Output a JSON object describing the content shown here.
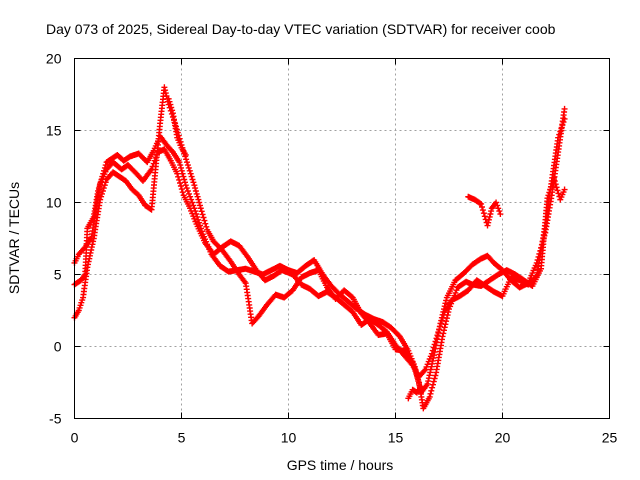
{
  "chart_data": {
    "type": "scatter",
    "title": "Day 073 of 2025, Sidereal Day-to-day VTEC variation (SDTVAR) for receiver coob",
    "xlabel": "GPS time / hours",
    "ylabel": "SDTVAR / TECUs",
    "xlim": [
      0,
      25
    ],
    "ylim": [
      -5,
      20
    ],
    "xticks": [
      0,
      5,
      10,
      15,
      20,
      25
    ],
    "yticks": [
      -5,
      0,
      5,
      10,
      15,
      20
    ],
    "grid": true,
    "legend": "none",
    "marker": "+",
    "series": [
      {
        "name": "track-a",
        "color": "#ff0000",
        "points": [
          [
            0.0,
            4.3
          ],
          [
            0.3,
            4.6
          ],
          [
            0.5,
            5.0
          ],
          [
            0.6,
            8.2
          ],
          [
            0.9,
            9.0
          ],
          [
            1.1,
            10.8
          ],
          [
            1.5,
            12.8
          ],
          [
            2.0,
            13.3
          ],
          [
            2.3,
            12.9
          ],
          [
            2.6,
            13.2
          ],
          [
            3.0,
            13.4
          ],
          [
            3.4,
            12.8
          ],
          [
            3.7,
            13.6
          ],
          [
            4.0,
            14.6
          ],
          [
            4.3,
            14.0
          ],
          [
            4.6,
            13.5
          ],
          [
            4.9,
            12.8
          ],
          [
            5.2,
            11.2
          ],
          [
            5.6,
            9.6
          ],
          [
            6.0,
            7.8
          ],
          [
            6.4,
            6.4
          ],
          [
            6.8,
            5.6
          ],
          [
            7.2,
            5.2
          ],
          [
            7.6,
            5.3
          ],
          [
            8.0,
            5.4
          ],
          [
            8.4,
            5.2
          ],
          [
            8.8,
            5.0
          ],
          [
            9.2,
            5.3
          ],
          [
            9.6,
            5.6
          ],
          [
            10.0,
            5.3
          ],
          [
            10.4,
            5.1
          ],
          [
            10.8,
            5.6
          ],
          [
            11.2,
            6.0
          ],
          [
            11.6,
            5.0
          ],
          [
            12.0,
            4.2
          ],
          [
            12.4,
            3.6
          ],
          [
            12.8,
            3.1
          ],
          [
            13.2,
            2.6
          ],
          [
            13.6,
            2.2
          ],
          [
            14.0,
            1.9
          ],
          [
            14.4,
            1.7
          ],
          [
            14.8,
            1.3
          ],
          [
            15.2,
            0.7
          ],
          [
            15.6,
            -0.3
          ],
          [
            15.9,
            -1.4
          ],
          [
            16.2,
            -3.2
          ],
          [
            16.5,
            -2.6
          ],
          [
            16.8,
            -0.6
          ],
          [
            17.1,
            1.6
          ],
          [
            17.4,
            3.4
          ],
          [
            17.8,
            4.6
          ],
          [
            18.2,
            5.1
          ],
          [
            18.6,
            5.7
          ],
          [
            19.0,
            6.1
          ],
          [
            19.3,
            6.3
          ],
          [
            19.6,
            5.8
          ],
          [
            20.0,
            5.3
          ],
          [
            20.4,
            4.6
          ],
          [
            20.8,
            4.1
          ],
          [
            21.2,
            4.4
          ],
          [
            21.6,
            5.8
          ],
          [
            22.0,
            7.9
          ],
          [
            22.3,
            10.5
          ],
          [
            22.6,
            13.5
          ],
          [
            22.9,
            16.5
          ]
        ]
      },
      {
        "name": "track-b",
        "color": "#ff0000",
        "points": [
          [
            0.0,
            5.8
          ],
          [
            0.2,
            6.4
          ],
          [
            0.5,
            6.9
          ],
          [
            0.8,
            7.6
          ],
          [
            1.0,
            9.5
          ],
          [
            1.2,
            11.3
          ],
          [
            1.5,
            12.3
          ],
          [
            1.8,
            12.8
          ],
          [
            2.2,
            12.3
          ],
          [
            2.5,
            12.6
          ],
          [
            2.9,
            12.0
          ],
          [
            3.2,
            11.5
          ],
          [
            3.6,
            12.3
          ],
          [
            3.9,
            13.5
          ],
          [
            4.2,
            13.7
          ],
          [
            4.5,
            12.9
          ],
          [
            4.8,
            12.0
          ],
          [
            5.1,
            10.5
          ],
          [
            5.4,
            9.6
          ],
          [
            5.7,
            8.5
          ],
          [
            6.1,
            7.2
          ],
          [
            6.5,
            6.4
          ],
          [
            6.9,
            6.9
          ],
          [
            7.3,
            7.3
          ],
          [
            7.7,
            7.0
          ],
          [
            8.1,
            6.2
          ],
          [
            8.5,
            5.3
          ],
          [
            8.9,
            4.6
          ],
          [
            9.3,
            4.9
          ],
          [
            9.7,
            5.3
          ],
          [
            10.2,
            5.0
          ],
          [
            10.6,
            4.3
          ],
          [
            11.0,
            4.0
          ],
          [
            11.4,
            3.5
          ],
          [
            11.8,
            3.8
          ],
          [
            12.2,
            3.4
          ],
          [
            12.6,
            2.9
          ],
          [
            13.0,
            2.4
          ],
          [
            13.4,
            1.5
          ],
          [
            13.8,
            1.9
          ],
          [
            14.2,
            1.5
          ],
          [
            14.6,
            1.0
          ],
          [
            15.0,
            0.1
          ],
          [
            15.4,
            -0.6
          ],
          [
            15.8,
            -1.3
          ],
          [
            16.1,
            -2.1
          ],
          [
            16.4,
            -1.6
          ],
          [
            16.7,
            -0.5
          ],
          [
            17.0,
            1.0
          ],
          [
            17.3,
            2.4
          ],
          [
            17.6,
            3.2
          ],
          [
            18.0,
            3.5
          ],
          [
            18.4,
            3.9
          ],
          [
            18.8,
            4.6
          ],
          [
            19.2,
            4.2
          ],
          [
            19.6,
            3.8
          ],
          [
            20.0,
            3.5
          ],
          [
            20.4,
            4.8
          ],
          [
            20.8,
            4.6
          ],
          [
            21.2,
            4.3
          ],
          [
            21.6,
            4.9
          ],
          [
            22.0,
            8.4
          ],
          [
            22.3,
            11.5
          ],
          [
            22.6,
            14.5
          ],
          [
            22.9,
            15.8
          ]
        ]
      },
      {
        "name": "track-c",
        "color": "#ff0000",
        "points": [
          [
            0.0,
            2.0
          ],
          [
            0.2,
            2.5
          ],
          [
            0.4,
            3.4
          ],
          [
            0.6,
            5.5
          ],
          [
            0.9,
            7.5
          ],
          [
            1.2,
            10.2
          ],
          [
            1.5,
            11.6
          ],
          [
            1.8,
            12.1
          ],
          [
            2.1,
            11.8
          ],
          [
            2.4,
            11.5
          ],
          [
            2.7,
            10.9
          ],
          [
            3.0,
            10.5
          ],
          [
            3.3,
            9.8
          ],
          [
            3.6,
            9.5
          ],
          [
            4.0,
            15.5
          ],
          [
            4.2,
            18.0
          ],
          [
            4.4,
            16.8
          ],
          [
            4.7,
            15.5
          ],
          [
            5.0,
            14.0
          ],
          [
            5.3,
            12.6
          ],
          [
            5.6,
            11.2
          ],
          [
            5.9,
            9.6
          ],
          [
            6.2,
            8.1
          ],
          [
            6.5,
            7.3
          ],
          [
            6.9,
            6.7
          ],
          [
            7.3,
            5.9
          ],
          [
            7.7,
            5.0
          ],
          [
            8.0,
            4.4
          ],
          [
            8.3,
            1.6
          ],
          [
            8.6,
            2.1
          ],
          [
            9.0,
            2.9
          ],
          [
            9.4,
            3.6
          ],
          [
            9.8,
            3.4
          ],
          [
            10.2,
            3.9
          ],
          [
            10.6,
            4.8
          ],
          [
            11.0,
            5.1
          ],
          [
            11.4,
            5.3
          ],
          [
            11.8,
            4.1
          ],
          [
            12.2,
            3.3
          ],
          [
            12.6,
            3.9
          ],
          [
            13.0,
            3.4
          ],
          [
            13.4,
            2.3
          ],
          [
            13.8,
            1.6
          ],
          [
            14.2,
            0.8
          ],
          [
            14.6,
            0.9
          ],
          [
            15.0,
            -0.2
          ],
          [
            15.4,
            -0.3
          ],
          [
            15.8,
            -1.1
          ],
          [
            16.1,
            -2.5
          ],
          [
            16.3,
            -4.3
          ],
          [
            16.6,
            -3.5
          ],
          [
            16.9,
            -1.8
          ],
          [
            17.2,
            0.7
          ],
          [
            17.5,
            2.6
          ],
          [
            17.9,
            4.1
          ],
          [
            18.3,
            4.5
          ],
          [
            18.6,
            4.3
          ],
          [
            19.0,
            4.2
          ],
          [
            19.4,
            4.6
          ],
          [
            19.8,
            5.0
          ],
          [
            20.2,
            5.3
          ],
          [
            20.6,
            5.0
          ],
          [
            21.0,
            4.6
          ],
          [
            21.4,
            4.2
          ],
          [
            21.8,
            5.4
          ],
          [
            22.1,
            10.3
          ],
          [
            22.4,
            11.7
          ],
          [
            22.7,
            10.2
          ],
          [
            22.9,
            10.9
          ]
        ]
      },
      {
        "name": "track-d",
        "color": "#ff0000",
        "points": [
          [
            4.4,
            17.2
          ],
          [
            4.6,
            16.2
          ],
          [
            4.8,
            14.5
          ],
          [
            5.0,
            13.8
          ],
          [
            5.2,
            13.3
          ],
          [
            15.6,
            -3.6
          ],
          [
            15.8,
            -3.0
          ],
          [
            16.0,
            -3.2
          ],
          [
            16.2,
            -2.8
          ],
          [
            18.4,
            10.4
          ],
          [
            18.7,
            10.2
          ],
          [
            19.0,
            9.9
          ],
          [
            19.3,
            8.4
          ],
          [
            19.5,
            9.6
          ],
          [
            19.7,
            10.0
          ],
          [
            19.9,
            9.2
          ]
        ]
      }
    ]
  }
}
